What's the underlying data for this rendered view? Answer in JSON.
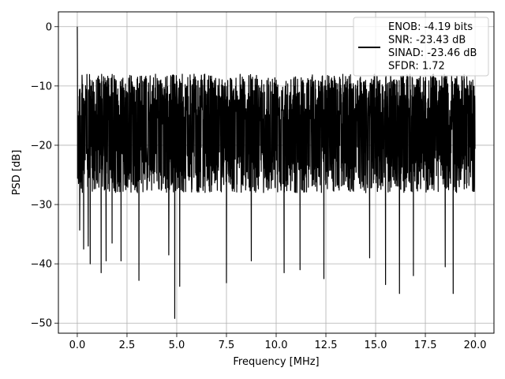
{
  "chart_data": {
    "type": "line",
    "title": "",
    "xlabel": "Frequency [MHz]",
    "ylabel": "PSD [dB]",
    "xlim": [
      -0.95,
      20.95
    ],
    "ylim": [
      -51.7,
      2.5
    ],
    "xticks": [
      0.0,
      2.5,
      5.0,
      7.5,
      10.0,
      12.5,
      15.0,
      17.5,
      20.0
    ],
    "xtick_labels": [
      "0.0",
      "2.5",
      "5.0",
      "7.5",
      "10.0",
      "12.5",
      "15.0",
      "17.5",
      "20.0"
    ],
    "yticks": [
      0,
      -10,
      -20,
      -30,
      -40,
      -50
    ],
    "ytick_labels": [
      "0",
      "−10",
      "−20",
      "−30",
      "−40",
      "−50"
    ],
    "grid": true,
    "legend": {
      "placement": "upper-right",
      "entries": [
        "ENOB: -4.19 bits",
        "SNR: -23.43 dB",
        "SINAD: -23.46 dB",
        "SFDR: 1.72"
      ]
    },
    "series": [
      {
        "color": "#000000",
        "description_of_shape": "dense noise floor",
        "x_range": [
          0.0,
          20.0
        ],
        "initial_peak": {
          "x": 0.0,
          "y": 0.0
        },
        "typical_upper_envelope": -8,
        "typical_lower_envelope": -28,
        "notable_minima": [
          {
            "x": 0.12,
            "y": -34.3
          },
          {
            "x": 0.32,
            "y": -37.5
          },
          {
            "x": 0.55,
            "y": -37.0
          },
          {
            "x": 0.65,
            "y": -40.0
          },
          {
            "x": 1.2,
            "y": -41.5
          },
          {
            "x": 1.45,
            "y": -39.5
          },
          {
            "x": 1.75,
            "y": -36.5
          },
          {
            "x": 2.2,
            "y": -39.5
          },
          {
            "x": 3.1,
            "y": -42.8
          },
          {
            "x": 4.6,
            "y": -38.5
          },
          {
            "x": 4.9,
            "y": -49.2
          },
          {
            "x": 5.15,
            "y": -43.8
          },
          {
            "x": 7.5,
            "y": -43.2
          },
          {
            "x": 8.75,
            "y": -39.5
          },
          {
            "x": 10.4,
            "y": -41.5
          },
          {
            "x": 11.2,
            "y": -41.0
          },
          {
            "x": 12.4,
            "y": -42.5
          },
          {
            "x": 14.7,
            "y": -39.0
          },
          {
            "x": 15.5,
            "y": -43.5
          },
          {
            "x": 16.2,
            "y": -45.0
          },
          {
            "x": 16.9,
            "y": -42.0
          },
          {
            "x": 18.5,
            "y": -40.5
          },
          {
            "x": 18.9,
            "y": -45.0
          }
        ]
      }
    ]
  }
}
